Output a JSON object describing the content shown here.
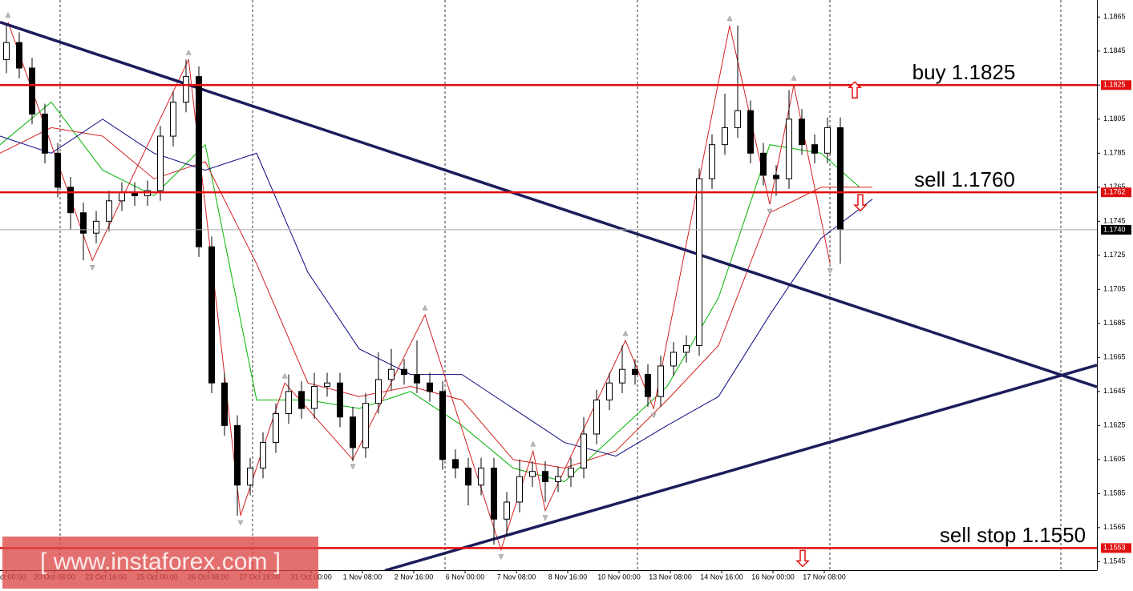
{
  "chart_data": {
    "type": "candlestick",
    "x": [
      1,
      3,
      5,
      7,
      9,
      11,
      13,
      15,
      17,
      19,
      21,
      23,
      25,
      27,
      29,
      31,
      33,
      35,
      37,
      39,
      41,
      43,
      45,
      47,
      49,
      51,
      53,
      55,
      57,
      59,
      61,
      63,
      65,
      67,
      69,
      71,
      73,
      75,
      77,
      79,
      81,
      83,
      85,
      87,
      89,
      91,
      93,
      95,
      97,
      99,
      101,
      103,
      105,
      107,
      109,
      111,
      113,
      115,
      117,
      119,
      121,
      123,
      125,
      127,
      129,
      131
    ],
    "open": [
      1.184,
      1.185,
      1.1835,
      1.1808,
      1.1785,
      1.1765,
      1.175,
      1.1738,
      1.1745,
      1.1757,
      1.1762,
      1.176,
      1.1763,
      1.1795,
      1.1815,
      1.183,
      1.173,
      1.165,
      1.1625,
      1.159,
      1.16,
      1.1615,
      1.1632,
      1.1645,
      1.1635,
      1.1648,
      1.165,
      1.163,
      1.1612,
      1.1638,
      1.1652,
      1.1658,
      1.1655,
      1.165,
      1.1645,
      1.1605,
      1.16,
      1.159,
      1.16,
      1.157,
      1.158,
      1.1595,
      1.1598,
      1.1592,
      1.1595,
      1.16,
      1.162,
      1.164,
      1.165,
      1.1658,
      1.1655,
      1.1642,
      1.166,
      1.1668,
      1.1672,
      1.177,
      1.179,
      1.18,
      1.181,
      1.1785,
      1.1772,
      1.177,
      1.1805,
      1.179,
      1.1785,
      1.18
    ],
    "high": [
      1.186,
      1.1856,
      1.1841,
      1.1814,
      1.1791,
      1.1771,
      1.1756,
      1.1751,
      1.1763,
      1.1768,
      1.1768,
      1.1769,
      1.1801,
      1.1821,
      1.184,
      1.1836,
      1.1736,
      1.1656,
      1.1631,
      1.1606,
      1.1621,
      1.1638,
      1.1655,
      1.1651,
      1.1656,
      1.1656,
      1.1656,
      1.1636,
      1.1644,
      1.1668,
      1.167,
      1.1664,
      1.1675,
      1.1656,
      1.1651,
      1.1611,
      1.1606,
      1.1606,
      1.1606,
      1.1586,
      1.1605,
      1.1604,
      1.1604,
      1.1601,
      1.1606,
      1.163,
      1.1646,
      1.1656,
      1.1672,
      1.1664,
      1.1661,
      1.1666,
      1.1674,
      1.1678,
      1.1776,
      1.1796,
      1.182,
      1.186,
      1.1816,
      1.1791,
      1.1778,
      1.1822,
      1.1811,
      1.1796,
      1.1806,
      1.1806
    ],
    "low": [
      1.1832,
      1.1829,
      1.1802,
      1.1779,
      1.1759,
      1.174,
      1.1722,
      1.1732,
      1.1739,
      1.1751,
      1.1754,
      1.1754,
      1.1757,
      1.1789,
      1.1809,
      1.1724,
      1.1644,
      1.1619,
      1.1572,
      1.1584,
      1.1594,
      1.1609,
      1.1626,
      1.1629,
      1.1629,
      1.1642,
      1.1624,
      1.1604,
      1.1606,
      1.1632,
      1.1646,
      1.1649,
      1.1644,
      1.1639,
      1.1599,
      1.1594,
      1.1578,
      1.1584,
      1.1555,
      1.156,
      1.1574,
      1.1589,
      1.158,
      1.1586,
      1.1589,
      1.1594,
      1.1614,
      1.1634,
      1.1644,
      1.1649,
      1.1636,
      1.1636,
      1.1654,
      1.1662,
      1.1666,
      1.1764,
      1.1784,
      1.1794,
      1.1779,
      1.1766,
      1.176,
      1.1764,
      1.1784,
      1.1779,
      1.1779,
      1.172
    ],
    "close": [
      1.185,
      1.1835,
      1.1808,
      1.1785,
      1.1765,
      1.175,
      1.1738,
      1.1745,
      1.1757,
      1.1762,
      1.176,
      1.1763,
      1.1795,
      1.1815,
      1.183,
      1.173,
      1.165,
      1.1625,
      1.159,
      1.16,
      1.1615,
      1.1632,
      1.1645,
      1.1635,
      1.1648,
      1.165,
      1.163,
      1.1612,
      1.1638,
      1.1652,
      1.1658,
      1.1655,
      1.165,
      1.1645,
      1.1605,
      1.16,
      1.159,
      1.16,
      1.157,
      1.158,
      1.1595,
      1.1598,
      1.1592,
      1.1595,
      1.16,
      1.162,
      1.164,
      1.165,
      1.1658,
      1.1655,
      1.1642,
      1.166,
      1.1668,
      1.1672,
      1.177,
      1.179,
      1.18,
      1.181,
      1.1785,
      1.1772,
      1.177,
      1.1805,
      1.179,
      1.1785,
      1.18,
      1.174
    ],
    "up_color": "#ffffff",
    "down_color": "#000000",
    "lines": [
      {
        "color": "#00b400",
        "width": 1,
        "x": [
          0,
          8,
          16,
          24,
          32,
          40,
          48,
          56,
          64,
          72,
          80,
          88,
          96,
          104,
          112,
          120,
          128,
          134
        ],
        "values": [
          1.179,
          1.1815,
          1.1775,
          1.176,
          1.179,
          1.164,
          1.164,
          1.1635,
          1.1645,
          1.1625,
          1.16,
          1.1592,
          1.162,
          1.1648,
          1.17,
          1.179,
          1.1785,
          1.1765
        ]
      },
      {
        "color": "#d42020",
        "width": 1,
        "x": [
          0,
          8,
          16,
          24,
          32,
          40,
          48,
          56,
          64,
          72,
          80,
          88,
          96,
          104,
          112,
          120,
          128,
          136
        ],
        "values": [
          1.1785,
          1.18,
          1.1795,
          1.177,
          1.178,
          1.172,
          1.165,
          1.1642,
          1.1648,
          1.164,
          1.1605,
          1.16,
          1.161,
          1.164,
          1.1672,
          1.175,
          1.1765,
          1.1765
        ]
      },
      {
        "color": "#0a0a80",
        "width": 1,
        "x": [
          0,
          8,
          16,
          24,
          32,
          40,
          48,
          56,
          64,
          72,
          80,
          88,
          96,
          104,
          112,
          120,
          128,
          136
        ],
        "values": [
          1.1795,
          1.1785,
          1.1805,
          1.1785,
          1.1775,
          1.1785,
          1.1715,
          1.167,
          1.1655,
          1.1655,
          1.1635,
          1.1615,
          1.1607,
          1.1625,
          1.1642,
          1.169,
          1.1735,
          1.1758
        ]
      },
      {
        "color": "#d42020",
        "width": 1,
        "markers": true,
        "x": [
          1.25,
          14.4,
          29.4,
          37.5,
          44.4,
          55,
          66.25,
          78.1,
          83.1,
          85,
          97.5,
          101.9,
          113.75,
          120,
          123.75,
          129.4
        ],
        "values": [
          1.1862,
          1.1722,
          1.184,
          1.1572,
          1.165,
          1.1605,
          1.169,
          1.1552,
          1.161,
          1.1575,
          1.1675,
          1.1635,
          1.186,
          1.1755,
          1.1825,
          1.172
        ]
      },
      {
        "color": "#1c1c5c",
        "width": 3.5,
        "x": [
          0,
          171
        ],
        "values": [
          1.1862,
          1.16477
        ]
      },
      {
        "color": "#1c1c5c",
        "width": 3.5,
        "x": [
          60,
          171
        ],
        "values": [
          1.15398,
          1.16605
        ]
      }
    ],
    "levels": [
      {
        "value": 1.1825,
        "label": "1.1825",
        "annotation": "buy 1.1825",
        "arrow": "up",
        "color": "#e01010"
      },
      {
        "value": 1.1762,
        "label": "1.1762",
        "annotation": "sell 1.1760",
        "arrow": "down",
        "color": "#e01010"
      },
      {
        "value": 1.1553,
        "label": "1.1553",
        "annotation": "sell stop 1.1550",
        "arrow": "down",
        "color": "#e01010"
      }
    ],
    "current_price": {
      "value": 1.174,
      "label": "1.1740"
    },
    "xlim": [
      0,
      171
    ],
    "ylim": [
      1.154,
      1.1875
    ],
    "xticks": [
      {
        "value": 1,
        "label": "ct 00:00"
      },
      {
        "value": 8.5,
        "label": "20 Oct 08:00"
      },
      {
        "value": 16.5,
        "label": "23 Oct 16:00"
      },
      {
        "value": 24.5,
        "label": "25 Oct 00:00"
      },
      {
        "value": 32.5,
        "label": "26 Oct 08:00"
      },
      {
        "value": 40.5,
        "label": "27 Oct 16:00"
      },
      {
        "value": 48.5,
        "label": "31 Oct 00:00"
      },
      {
        "value": 56.5,
        "label": "1 Nov 08:00"
      },
      {
        "value": 64.5,
        "label": "2 Nov 16:00"
      },
      {
        "value": 72.5,
        "label": "6 Nov 00:00"
      },
      {
        "value": 80.5,
        "label": "7 Nov 08:00"
      },
      {
        "value": 88.5,
        "label": "8 Nov 16:00"
      },
      {
        "value": 96.5,
        "label": "10 Nov 00:00"
      },
      {
        "value": 104.5,
        "label": "13 Nov 08:00"
      },
      {
        "value": 112.5,
        "label": "14 Nov 16:00"
      },
      {
        "value": 120.5,
        "label": "16 Nov 00:00"
      },
      {
        "value": 128.5,
        "label": "17 Nov 08:00"
      }
    ],
    "yticks": [
      1.1545,
      1.1565,
      1.1585,
      1.1605,
      1.1625,
      1.1645,
      1.1665,
      1.1685,
      1.1705,
      1.1725,
      1.1745,
      1.1765,
      1.1785,
      1.1805,
      1.1825,
      1.1845,
      1.1865
    ],
    "watermark": "[ www.instaforex.com ]"
  }
}
